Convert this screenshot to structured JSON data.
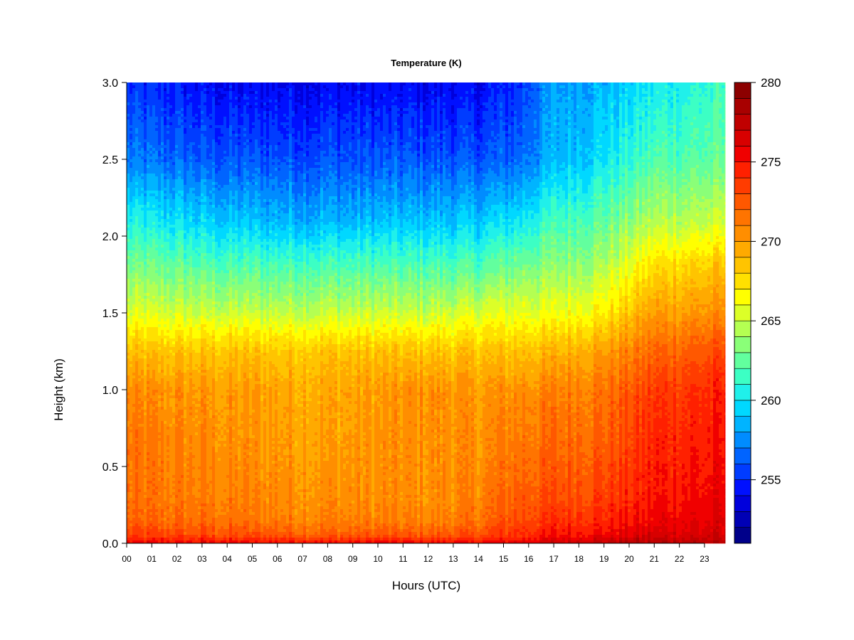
{
  "chart_data": {
    "type": "heatmap",
    "title": "Temperature (K)",
    "xlabel": "Hours (UTC)",
    "ylabel": "Height (km)",
    "x_ticks": [
      "00",
      "01",
      "02",
      "03",
      "04",
      "05",
      "06",
      "07",
      "08",
      "09",
      "10",
      "11",
      "12",
      "13",
      "14",
      "15",
      "16",
      "17",
      "18",
      "19",
      "20",
      "21",
      "22",
      "23"
    ],
    "xlim": [
      0,
      24
    ],
    "y_ticks": [
      "0.0",
      "0.5",
      "1.0",
      "1.5",
      "2.0",
      "2.5",
      "3.0"
    ],
    "ylim": [
      0,
      3
    ],
    "colorbar": {
      "min": 251,
      "max": 280,
      "step": 1,
      "ticks": [
        "255",
        "260",
        "265",
        "270",
        "275",
        "280"
      ],
      "colors": [
        "#00008a",
        "#0000b5",
        "#0000dc",
        "#0010ff",
        "#003cff",
        "#0064ff",
        "#008cff",
        "#00b4ff",
        "#00d8ff",
        "#20f0ea",
        "#3cffc4",
        "#62ff9e",
        "#8aff78",
        "#b4ff52",
        "#dcff28",
        "#ffff00",
        "#ffe000",
        "#ffc400",
        "#ffaa00",
        "#ff8e00",
        "#ff7400",
        "#ff5800",
        "#ff3c00",
        "#ff2000",
        "#f00000",
        "#d80000",
        "#c00000",
        "#a80000",
        "#8c0000"
      ]
    },
    "temperature_profiles_K": {
      "x_hours": [
        0,
        4,
        8,
        12,
        14,
        15.5,
        17,
        19,
        21,
        23.9
      ],
      "heights_km": [
        0.0,
        0.05,
        0.15,
        0.3,
        0.6,
        1.0,
        1.25,
        1.5,
        1.8,
        2.1,
        2.5,
        3.0
      ],
      "values": [
        [
          275.5,
          273.5,
          272,
          271.5,
          271.5,
          270.5,
          268.5,
          265.5,
          263,
          260.5,
          257,
          255
        ],
        [
          275.5,
          273,
          271.5,
          271,
          270.5,
          270,
          268.5,
          265,
          262,
          259,
          256,
          254
        ],
        [
          275.5,
          272.5,
          271,
          270.5,
          270,
          269.5,
          268.5,
          265,
          262,
          258.5,
          256,
          254
        ],
        [
          275.5,
          272.5,
          271,
          270.5,
          270.5,
          270.5,
          268.5,
          265,
          262,
          259,
          256,
          254
        ],
        [
          275.5,
          273,
          271.5,
          271,
          270.5,
          270,
          268.5,
          265.5,
          262,
          259,
          256,
          254
        ],
        [
          276,
          274,
          273,
          272.5,
          271.5,
          270.5,
          268.5,
          266,
          263,
          260,
          256.5,
          255
        ],
        [
          277,
          275,
          274,
          273,
          272,
          271,
          269,
          266,
          263.5,
          261.5,
          258.5,
          258
        ],
        [
          277.5,
          275.5,
          274.5,
          273.5,
          272.5,
          271.5,
          270,
          267,
          264.5,
          262.5,
          260,
          258.5
        ],
        [
          278,
          276.5,
          275.5,
          275,
          274.5,
          273.5,
          272,
          270,
          267.5,
          264.5,
          262,
          260
        ],
        [
          278,
          276.5,
          276,
          275.5,
          275,
          274.5,
          273,
          270.5,
          268.5,
          265,
          262.5,
          261.5
        ]
      ]
    }
  }
}
